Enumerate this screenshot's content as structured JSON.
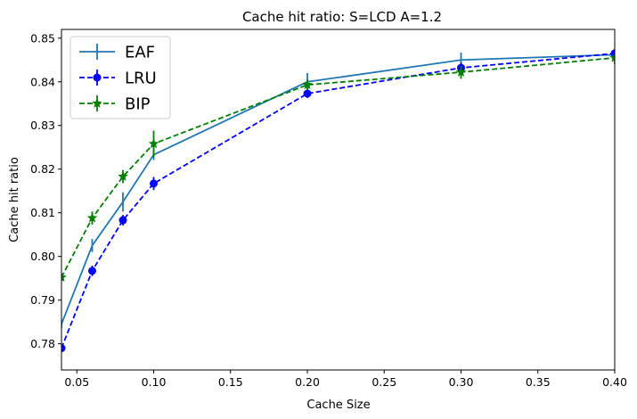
{
  "chart_data": {
    "type": "line",
    "title": "Cache hit ratio: S=LCD A=1.2",
    "xlabel": "Cache Size",
    "ylabel": "Cache hit ratio",
    "xlim": [
      0.04,
      0.4
    ],
    "ylim": [
      0.774,
      0.852
    ],
    "xticks": [
      0.05,
      0.1,
      0.15,
      0.2,
      0.25,
      0.3,
      0.35,
      0.4
    ],
    "xtick_labels": [
      "0.05",
      "0.10",
      "0.15",
      "0.20",
      "0.25",
      "0.30",
      "0.35",
      "0.40"
    ],
    "yticks": [
      0.78,
      0.79,
      0.8,
      0.81,
      0.82,
      0.83,
      0.84,
      0.85
    ],
    "ytick_labels": [
      "0.78",
      "0.79",
      "0.80",
      "0.81",
      "0.82",
      "0.83",
      "0.84",
      "0.85"
    ],
    "grid": false,
    "legend_position": "top-left",
    "x": [
      0.04,
      0.06,
      0.08,
      0.1,
      0.2,
      0.3,
      0.4
    ],
    "series": [
      {
        "name": "EAF",
        "color": "#1f77b4",
        "linestyle": "solid",
        "marker": "none",
        "values": [
          0.7845,
          0.8025,
          0.8125,
          0.8233,
          0.84,
          0.845,
          0.8462
        ],
        "errors": [
          0.001,
          0.0015,
          0.0022,
          0.0012,
          0.002,
          0.0017,
          0.001
        ]
      },
      {
        "name": "LRU",
        "color": "#0000ff",
        "linestyle": "dashed",
        "marker": "circle",
        "values": [
          0.779,
          0.7967,
          0.8083,
          0.8167,
          0.8373,
          0.8432,
          0.8465
        ],
        "errors": [
          0.0008,
          0.0012,
          0.0012,
          0.0015,
          0.001,
          0.0012,
          0.001
        ]
      },
      {
        "name": "BIP",
        "color": "#008000",
        "linestyle": "dashed",
        "marker": "star",
        "values": [
          0.7952,
          0.8088,
          0.8183,
          0.8258,
          0.8393,
          0.8422,
          0.8455
        ],
        "errors": [
          0.0008,
          0.0015,
          0.0015,
          0.003,
          0.0012,
          0.0015,
          0.0015
        ]
      }
    ]
  }
}
